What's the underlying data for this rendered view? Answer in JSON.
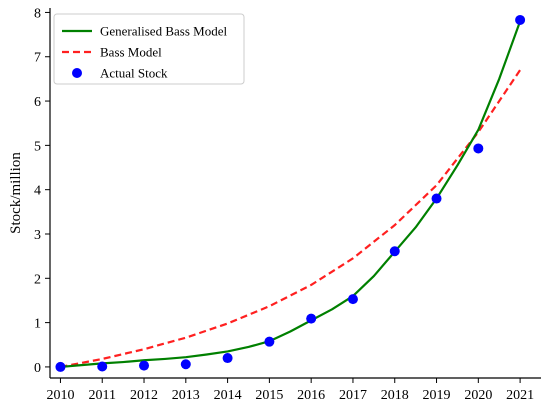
{
  "chart_data": {
    "type": "line",
    "title": "",
    "xlabel": "",
    "ylabel": "Stock/million",
    "xlim": [
      2009.75,
      2021.5
    ],
    "ylim": [
      -0.25,
      8.1
    ],
    "x_ticks": [
      2010,
      2011,
      2012,
      2013,
      2014,
      2015,
      2016,
      2017,
      2018,
      2019,
      2020,
      2021
    ],
    "y_ticks": [
      0,
      1,
      2,
      3,
      4,
      5,
      6,
      7,
      8
    ],
    "grid": false,
    "legend": "top-left",
    "series": [
      {
        "name": "Generalised Bass Model",
        "style": "solid-line",
        "color": "#008000",
        "x": [
          2010,
          2010.5,
          2011,
          2011.5,
          2012,
          2012.5,
          2013,
          2013.5,
          2014,
          2014.5,
          2015,
          2015.5,
          2016,
          2016.5,
          2017,
          2017.5,
          2018,
          2018.5,
          2019,
          2019.5,
          2020,
          2020.5,
          2021
        ],
        "y": [
          0.0,
          0.04,
          0.08,
          0.11,
          0.15,
          0.18,
          0.22,
          0.28,
          0.35,
          0.45,
          0.58,
          0.8,
          1.05,
          1.3,
          1.6,
          2.05,
          2.6,
          3.15,
          3.8,
          4.55,
          5.35,
          6.5,
          7.8
        ]
      },
      {
        "name": "Bass Model",
        "style": "dashed-line",
        "color": "#ff2020",
        "x": [
          2010,
          2011,
          2012,
          2013,
          2014,
          2015,
          2016,
          2017,
          2018,
          2019,
          2020,
          2021
        ],
        "y": [
          0.0,
          0.18,
          0.4,
          0.66,
          0.98,
          1.37,
          1.85,
          2.45,
          3.2,
          4.1,
          5.3,
          6.7
        ]
      },
      {
        "name": "Actual Stock",
        "style": "markers",
        "color": "#0000ff",
        "x": [
          2010,
          2011,
          2012,
          2013,
          2014,
          2015,
          2016,
          2017,
          2018,
          2019,
          2020,
          2021
        ],
        "y": [
          0.0,
          0.01,
          0.03,
          0.06,
          0.2,
          0.57,
          1.09,
          1.53,
          2.61,
          3.8,
          4.93,
          7.83
        ]
      }
    ]
  }
}
